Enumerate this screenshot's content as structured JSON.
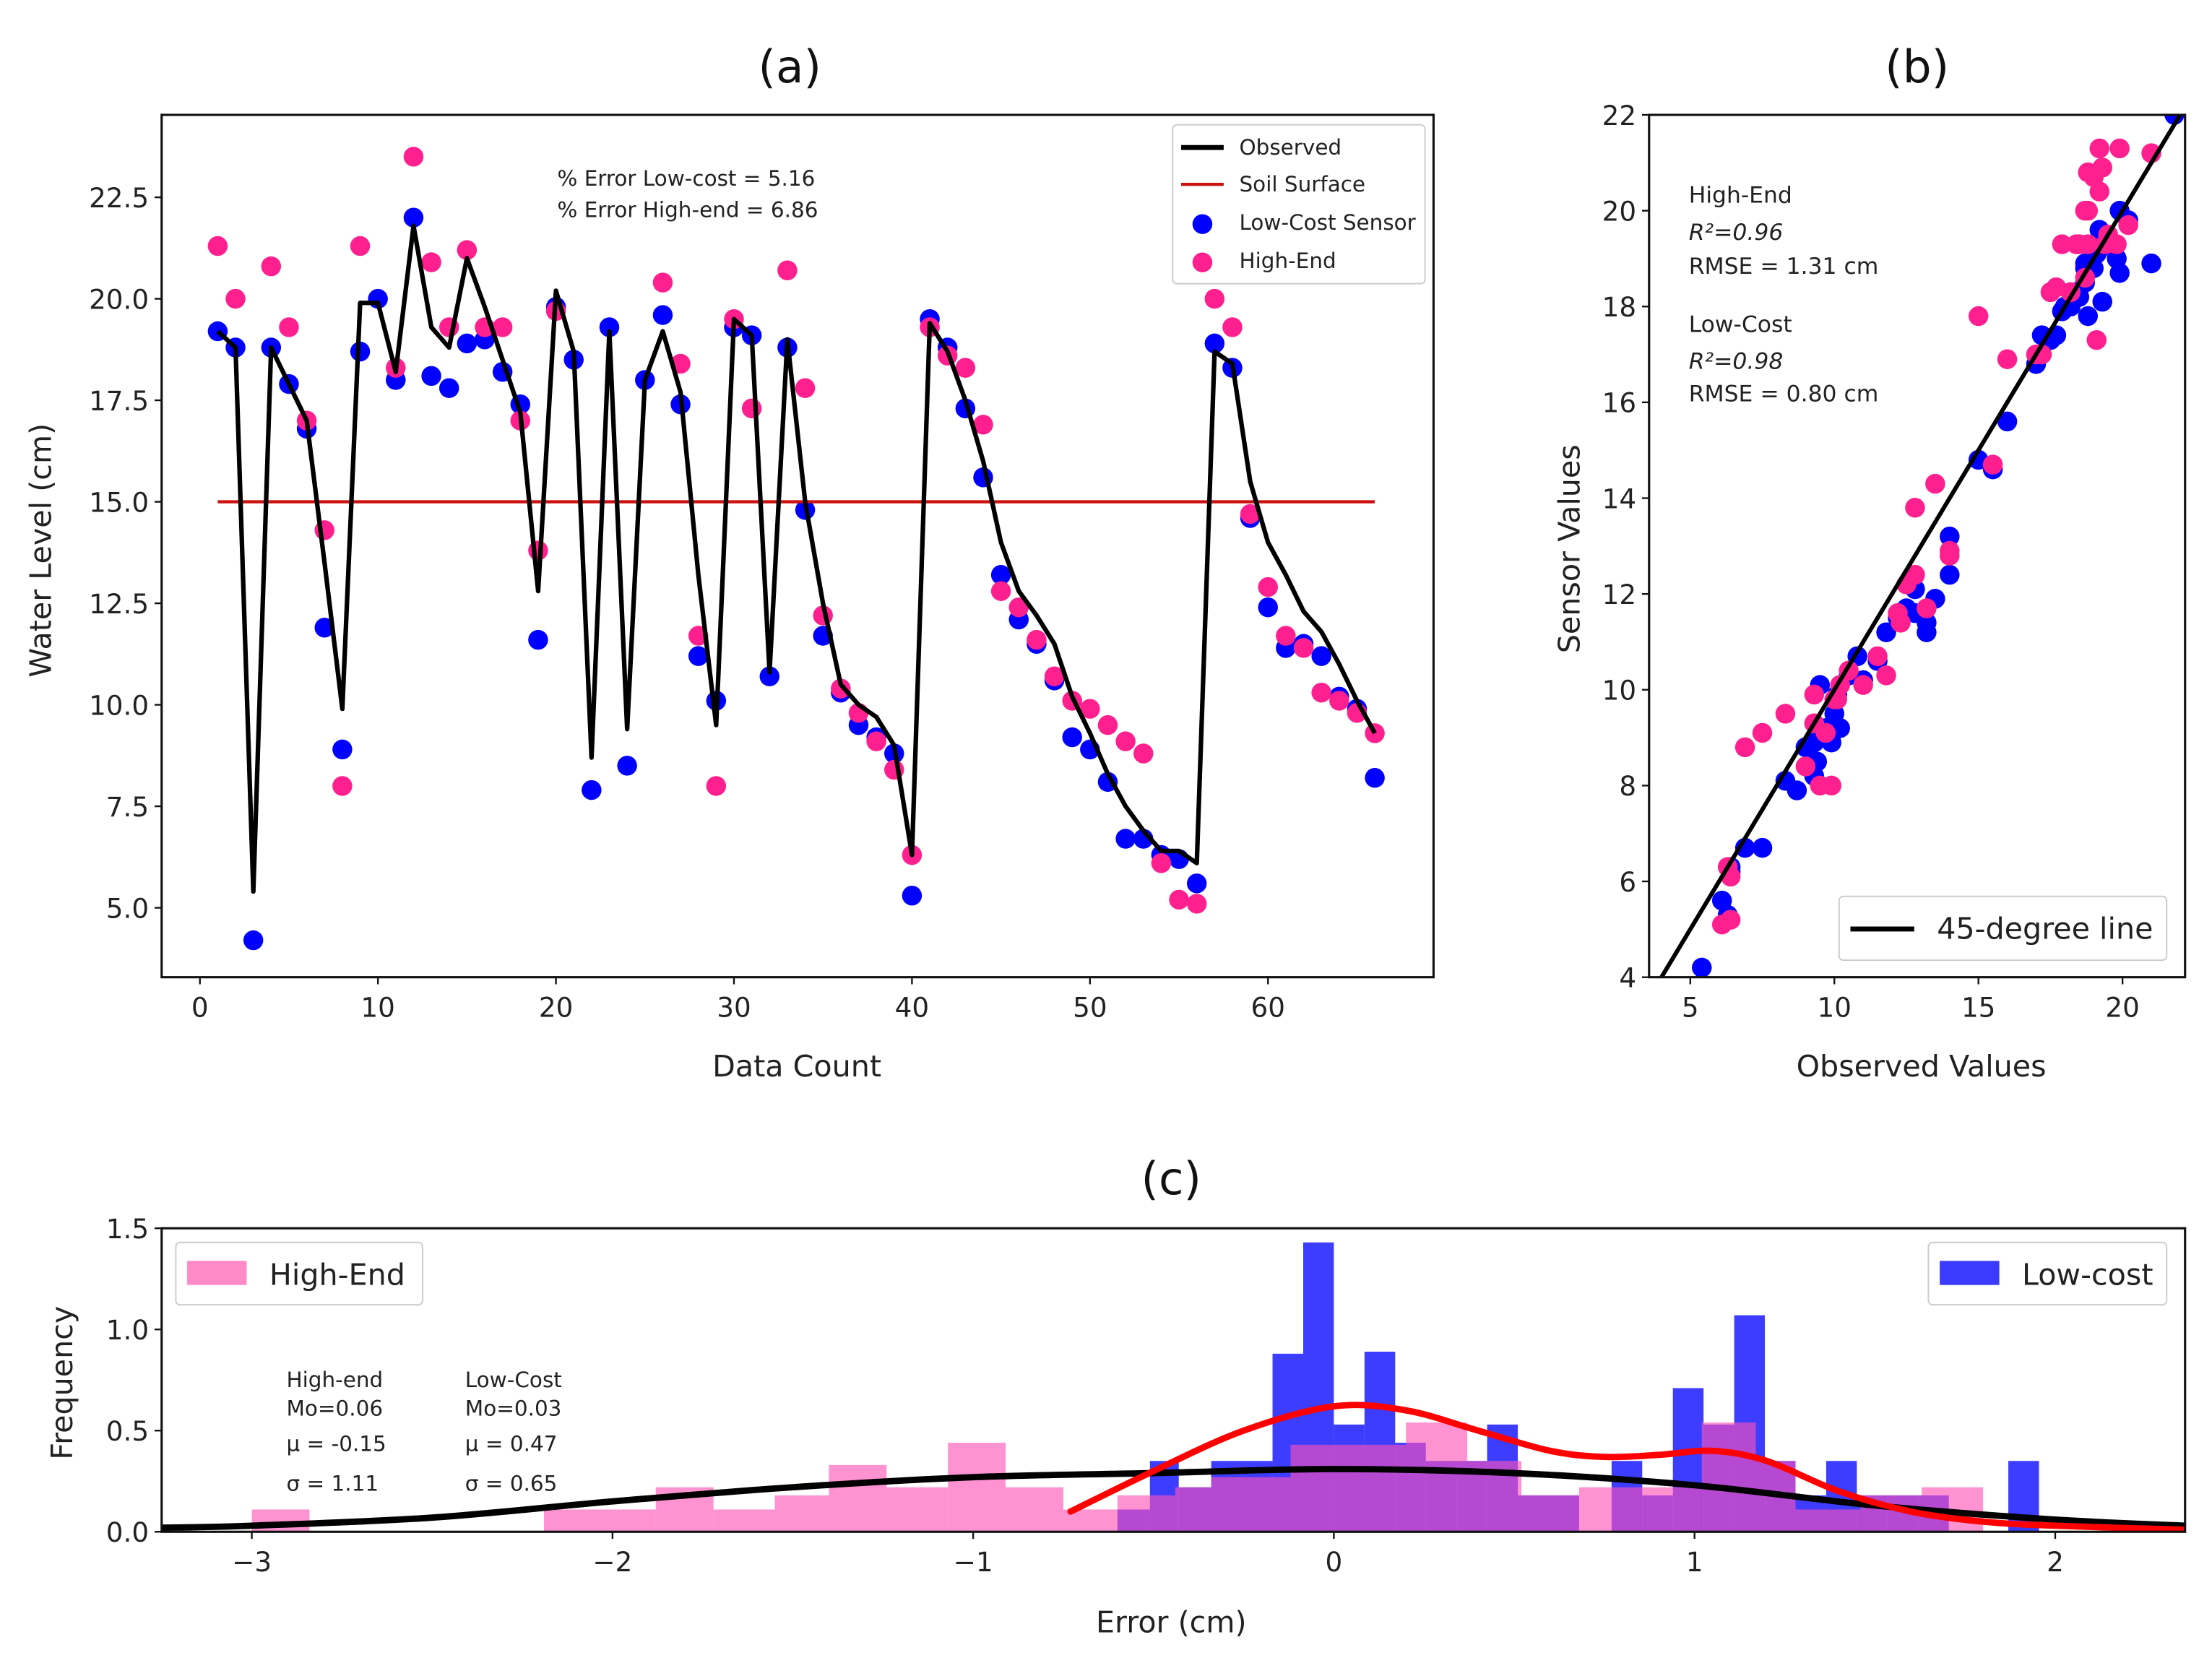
{
  "chart_data": [
    {
      "panel": "a",
      "type": "line+scatter",
      "title": "(a)",
      "xlabel": "Data Count",
      "ylabel": "Water Level (cm)",
      "xlim": [
        -2.15,
        69.3
      ],
      "ylim": [
        3.29,
        24.53
      ],
      "xticks": [
        0,
        10,
        20,
        30,
        40,
        50,
        60
      ],
      "xtick_labels": [
        "0",
        "10",
        "20",
        "30",
        "40",
        "50",
        "60"
      ],
      "yticks": [
        5.0,
        7.5,
        10.0,
        12.5,
        15.0,
        17.5,
        20.0,
        22.5
      ],
      "ytick_labels": [
        "5.0",
        "7.5",
        "10.0",
        "12.5",
        "15.0",
        "17.5",
        "20.0",
        "22.5"
      ],
      "annotations": [
        "% Error Low-cost = 5.16",
        "% Error High-end = 6.86"
      ],
      "legend": {
        "position": "top-right",
        "entries": [
          "Observed",
          "Soil Surface",
          "Low-Cost Sensor",
          "High-End"
        ]
      },
      "x": [
        1,
        2,
        3,
        4,
        5,
        6,
        7,
        8,
        9,
        10,
        11,
        12,
        13,
        14,
        15,
        16,
        17,
        18,
        19,
        20,
        21,
        22,
        23,
        24,
        25,
        26,
        27,
        28,
        29,
        30,
        31,
        32,
        33,
        34,
        35,
        36,
        37,
        38,
        39,
        40,
        41,
        42,
        43,
        44,
        45,
        46,
        47,
        48,
        49,
        50,
        51,
        52,
        53,
        54,
        55,
        56,
        57,
        58,
        59,
        60,
        61,
        62,
        63,
        64,
        65,
        66
      ],
      "series": [
        {
          "name": "Observed",
          "type": "line",
          "color": "#000000",
          "values": [
            19.2,
            18.8,
            5.4,
            18.8,
            17.9,
            17.0,
            13.5,
            9.9,
            19.9,
            19.9,
            18.2,
            21.8,
            19.3,
            18.8,
            21.0,
            19.8,
            18.5,
            17.2,
            12.8,
            20.2,
            18.7,
            8.7,
            19.2,
            9.4,
            18.0,
            19.2,
            17.7,
            13.2,
            9.5,
            19.5,
            19.1,
            10.8,
            19.0,
            15.0,
            12.5,
            10.5,
            10.0,
            9.7,
            9.0,
            6.3,
            19.4,
            18.7,
            17.5,
            16.0,
            14.0,
            12.8,
            12.2,
            11.5,
            10.2,
            9.3,
            8.3,
            7.5,
            6.9,
            6.4,
            6.4,
            6.1,
            18.7,
            18.4,
            15.5,
            14.0,
            13.2,
            12.3,
            11.8,
            11.0,
            10.1,
            9.3
          ]
        },
        {
          "name": "Soil Surface",
          "type": "hline",
          "color": "#cc1111",
          "value": 15.0,
          "x_range": [
            1,
            66
          ]
        },
        {
          "name": "Low-Cost Sensor",
          "type": "scatter",
          "color": "#0000ff",
          "values": [
            19.2,
            18.8,
            4.2,
            18.8,
            17.9,
            16.8,
            11.9,
            8.9,
            18.7,
            20.0,
            18.0,
            22.0,
            18.1,
            17.8,
            18.9,
            19.0,
            18.2,
            17.4,
            11.6,
            19.8,
            18.5,
            7.9,
            19.3,
            8.5,
            18.0,
            19.6,
            17.4,
            11.2,
            10.1,
            19.3,
            19.1,
            10.7,
            18.8,
            14.8,
            11.7,
            10.3,
            9.5,
            9.2,
            8.8,
            5.3,
            19.5,
            18.8,
            17.3,
            15.6,
            13.2,
            12.1,
            11.5,
            10.6,
            9.2,
            8.9,
            8.1,
            6.7,
            6.7,
            6.3,
            6.2,
            5.6,
            18.9,
            18.3,
            14.6,
            12.4,
            11.4,
            11.5,
            11.2,
            10.2,
            9.9,
            8.2
          ]
        },
        {
          "name": "High-End",
          "type": "scatter",
          "color": "#ff1f8e",
          "values": [
            21.3,
            20.0,
            null,
            20.8,
            19.3,
            17.0,
            14.3,
            8.0,
            21.3,
            null,
            18.3,
            23.5,
            20.9,
            19.3,
            21.2,
            19.3,
            19.3,
            17.0,
            13.8,
            19.7,
            null,
            null,
            null,
            null,
            null,
            20.4,
            18.4,
            11.7,
            8.0,
            19.5,
            17.3,
            null,
            20.7,
            17.8,
            12.2,
            10.4,
            9.8,
            9.1,
            8.4,
            6.3,
            19.3,
            18.6,
            18.3,
            16.9,
            12.8,
            12.4,
            11.6,
            10.7,
            10.1,
            9.9,
            9.5,
            9.1,
            8.8,
            6.1,
            5.2,
            5.1,
            20.0,
            19.3,
            14.7,
            12.9,
            11.7,
            11.4,
            10.3,
            10.1,
            9.8,
            9.3
          ]
        }
      ]
    },
    {
      "panel": "b",
      "type": "scatter",
      "title": "(b)",
      "xlabel": "Observed Values",
      "ylabel": "Sensor Values",
      "xlim": [
        3.57,
        22.17
      ],
      "ylim": [
        4,
        22
      ],
      "xticks": [
        5,
        10,
        15,
        20
      ],
      "xtick_labels": [
        "5",
        "10",
        "15",
        "20"
      ],
      "yticks": [
        4,
        6,
        8,
        10,
        12,
        14,
        16,
        18,
        20,
        22
      ],
      "ytick_labels": [
        "4",
        "6",
        "8",
        "10",
        "12",
        "14",
        "16",
        "18",
        "20",
        "22"
      ],
      "points": "Observed (panel a) vs Low-Cost Sensor / High-End (panel a)",
      "reference_line": {
        "name": "45-degree line",
        "slope": 1,
        "intercept": 0,
        "color": "#000000"
      },
      "legend": {
        "position": "bottom-right",
        "entries": [
          "45-degree line"
        ]
      },
      "annotations": {
        "high_end": {
          "label": "High-End",
          "r2": "R²=0.96",
          "rmse": "RMSE = 1.31 cm"
        },
        "low_cost": {
          "label": "Low-Cost",
          "r2": "R²=0.98",
          "rmse": "RMSE = 0.80 cm"
        }
      }
    },
    {
      "panel": "c",
      "type": "histogram+density",
      "title": "(c)",
      "xlabel": "Error (cm)",
      "ylabel": "Frequency",
      "xlim": [
        -3.25,
        2.36
      ],
      "ylim": [
        0,
        1.5
      ],
      "xticks": [
        -3,
        -2,
        -1,
        0,
        1,
        2
      ],
      "xtick_labels": [
        "−3",
        "−2",
        "−1",
        "0",
        "1",
        "2"
      ],
      "yticks": [
        0.0,
        0.5,
        1.0,
        1.5
      ],
      "ytick_labels": [
        "0.0",
        "0.5",
        "1.0",
        "1.5"
      ],
      "legends": [
        {
          "position": "top-left",
          "label": "High-End",
          "color": "#ff8ac8"
        },
        {
          "position": "top-right",
          "label": "Low-cost",
          "color": "#3b3bff"
        }
      ],
      "stats": {
        "high_end": {
          "label": "High-end",
          "mode": "Mo=0.06",
          "mean": "μ = -0.15",
          "std": "σ = 1.11"
        },
        "low_cost": {
          "label": "Low-Cost",
          "mode": "Mo=0.03",
          "mean": "μ = 0.47",
          "std": "σ = 0.65"
        }
      },
      "histograms": [
        {
          "name": "Low-cost",
          "color": "#0000ff",
          "bins": [
            [
              -0.6,
              -0.51,
              0.11
            ],
            [
              -0.51,
              -0.43,
              0.35
            ],
            [
              -0.43,
              -0.34,
              0.22
            ],
            [
              -0.34,
              -0.26,
              0.35
            ],
            [
              -0.26,
              -0.17,
              0.35
            ],
            [
              -0.17,
              -0.085,
              0.88
            ],
            [
              -0.085,
              0.0,
              1.43
            ],
            [
              0.0,
              0.085,
              0.53
            ],
            [
              0.085,
              0.17,
              0.89
            ],
            [
              0.17,
              0.255,
              0.44
            ],
            [
              0.255,
              0.34,
              0.35
            ],
            [
              0.34,
              0.425,
              0.35
            ],
            [
              0.425,
              0.51,
              0.53
            ],
            [
              0.51,
              0.595,
              0.18
            ],
            [
              0.595,
              0.68,
              0.18
            ],
            [
              0.77,
              0.855,
              0.35
            ],
            [
              0.855,
              0.94,
              0.18
            ],
            [
              0.94,
              1.025,
              0.71
            ],
            [
              1.025,
              1.11,
              0.53
            ],
            [
              1.11,
              1.195,
              1.07
            ],
            [
              1.195,
              1.28,
              0.35
            ],
            [
              1.28,
              1.365,
              0.18
            ],
            [
              1.365,
              1.45,
              0.35
            ],
            [
              1.45,
              1.535,
              0.18
            ],
            [
              1.535,
              1.62,
              0.18
            ],
            [
              1.62,
              1.705,
              0.18
            ],
            [
              1.87,
              1.955,
              0.35
            ]
          ]
        },
        {
          "name": "High-End",
          "color": "#ff69b4",
          "bins": [
            [
              -3.0,
              -2.84,
              0.11
            ],
            [
              -2.19,
              -1.88,
              0.11
            ],
            [
              -1.88,
              -1.72,
              0.22
            ],
            [
              -1.72,
              -1.55,
              0.11
            ],
            [
              -1.55,
              -1.4,
              0.18
            ],
            [
              -1.4,
              -1.24,
              0.33
            ],
            [
              -1.24,
              -1.07,
              0.22
            ],
            [
              -1.07,
              -0.91,
              0.44
            ],
            [
              -0.91,
              -0.75,
              0.22
            ],
            [
              -0.75,
              -0.6,
              0.11
            ],
            [
              -0.6,
              -0.44,
              0.18
            ],
            [
              -0.44,
              -0.34,
              0.22
            ],
            [
              -0.34,
              -0.12,
              0.27
            ],
            [
              -0.12,
              0.2,
              0.43
            ],
            [
              0.2,
              0.37,
              0.54
            ],
            [
              0.37,
              0.52,
              0.35
            ],
            [
              0.52,
              0.68,
              0.18
            ],
            [
              0.68,
              0.86,
              0.22
            ],
            [
              0.86,
              1.02,
              0.22
            ],
            [
              1.02,
              1.17,
              0.54
            ],
            [
              1.17,
              1.28,
              0.35
            ],
            [
              1.28,
              1.46,
              0.11
            ],
            [
              1.46,
              1.63,
              0.18
            ],
            [
              1.63,
              1.8,
              0.22
            ]
          ]
        }
      ],
      "curves": [
        {
          "name": "High-End density",
          "color": "#000000",
          "x": [
            -3.25,
            -3.0,
            -2.5,
            -2.0,
            -1.5,
            -1.0,
            -0.5,
            0.0,
            0.5,
            1.0,
            1.5,
            2.0,
            2.36
          ],
          "y": [
            0.02,
            0.03,
            0.07,
            0.15,
            0.22,
            0.27,
            0.29,
            0.31,
            0.29,
            0.23,
            0.13,
            0.06,
            0.03
          ]
        },
        {
          "name": "Low-cost density",
          "color": "#ff0000",
          "x": [
            -0.73,
            -0.5,
            -0.25,
            0.0,
            0.2,
            0.4,
            0.6,
            0.75,
            0.9,
            1.05,
            1.2,
            1.4,
            1.6,
            1.8,
            2.0,
            2.36
          ],
          "y": [
            0.1,
            0.3,
            0.5,
            0.62,
            0.6,
            0.5,
            0.4,
            0.37,
            0.38,
            0.4,
            0.35,
            0.2,
            0.1,
            0.05,
            0.03,
            0.01
          ]
        }
      ]
    }
  ]
}
